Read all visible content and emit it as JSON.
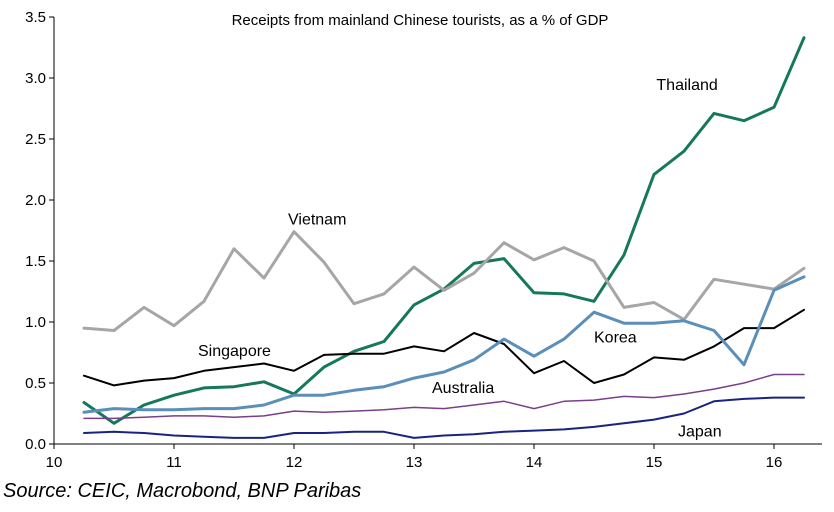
{
  "chart_data": {
    "type": "line",
    "title": "Receipts from mainland Chinese tourists, as a % of GDP",
    "source": "Source: CEIC, Macrobond, BNP Paribas",
    "xlim": [
      10,
      16.4
    ],
    "ylim": [
      0,
      3.5
    ],
    "x_ticks": [
      "10",
      "11",
      "12",
      "13",
      "14",
      "15",
      "16"
    ],
    "y_ticks": [
      "0.0",
      "0.5",
      "1.0",
      "1.5",
      "2.0",
      "2.5",
      "3.0",
      "3.5"
    ],
    "grid": false,
    "x": [
      10.25,
      10.5,
      10.75,
      11,
      11.25,
      11.5,
      11.75,
      12,
      12.25,
      12.5,
      12.75,
      13,
      13.25,
      13.5,
      13.75,
      14,
      14.25,
      14.5,
      14.75,
      15,
      15.25,
      15.5,
      15.75,
      16,
      16.25
    ],
    "series": [
      {
        "name": "Thailand",
        "color": "#16785a",
        "width": 3,
        "values": [
          0.34,
          0.17,
          0.32,
          0.4,
          0.46,
          0.47,
          0.51,
          0.41,
          0.63,
          0.76,
          0.84,
          1.14,
          1.27,
          1.48,
          1.52,
          1.24,
          1.23,
          1.17,
          1.55,
          2.21,
          2.4,
          2.71,
          2.65,
          2.76,
          3.33
        ]
      },
      {
        "name": "Vietnam",
        "color": "#a6a6a6",
        "width": 3,
        "values": [
          0.95,
          0.93,
          1.12,
          0.97,
          1.17,
          1.6,
          1.36,
          1.74,
          1.49,
          1.15,
          1.23,
          1.45,
          1.26,
          1.4,
          1.65,
          1.51,
          1.61,
          1.5,
          1.12,
          1.16,
          1.02,
          1.35,
          1.31,
          1.27,
          1.44
        ]
      },
      {
        "name": "Singapore",
        "color": "#000000",
        "width": 2,
        "values": [
          0.56,
          0.48,
          0.52,
          0.54,
          0.6,
          0.63,
          0.66,
          0.6,
          0.73,
          0.74,
          0.74,
          0.8,
          0.76,
          0.91,
          0.82,
          0.58,
          0.68,
          0.5,
          0.57,
          0.71,
          0.69,
          0.8,
          0.95,
          0.95,
          1.1
        ]
      },
      {
        "name": "Korea",
        "color": "#5b8fb9",
        "width": 3,
        "values": [
          0.26,
          0.29,
          0.28,
          0.28,
          0.29,
          0.29,
          0.32,
          0.4,
          0.4,
          0.44,
          0.47,
          0.54,
          0.59,
          0.69,
          0.86,
          0.72,
          0.86,
          1.08,
          0.99,
          0.99,
          1.01,
          0.93,
          0.65,
          1.26,
          1.37
        ]
      },
      {
        "name": "Australia",
        "color": "#7a3f8a",
        "width": 1.5,
        "values": [
          0.21,
          0.21,
          0.22,
          0.23,
          0.23,
          0.22,
          0.23,
          0.27,
          0.26,
          0.27,
          0.28,
          0.3,
          0.29,
          0.32,
          0.35,
          0.29,
          0.35,
          0.36,
          0.39,
          0.38,
          0.41,
          0.45,
          0.5,
          0.57,
          0.57
        ]
      },
      {
        "name": "Japan",
        "color": "#1a2480",
        "width": 2,
        "values": [
          0.09,
          0.1,
          0.09,
          0.07,
          0.06,
          0.05,
          0.05,
          0.09,
          0.09,
          0.1,
          0.1,
          0.05,
          0.07,
          0.08,
          0.1,
          0.11,
          0.12,
          0.14,
          0.17,
          0.2,
          0.25,
          0.35,
          0.37,
          0.38,
          0.38
        ]
      }
    ]
  }
}
